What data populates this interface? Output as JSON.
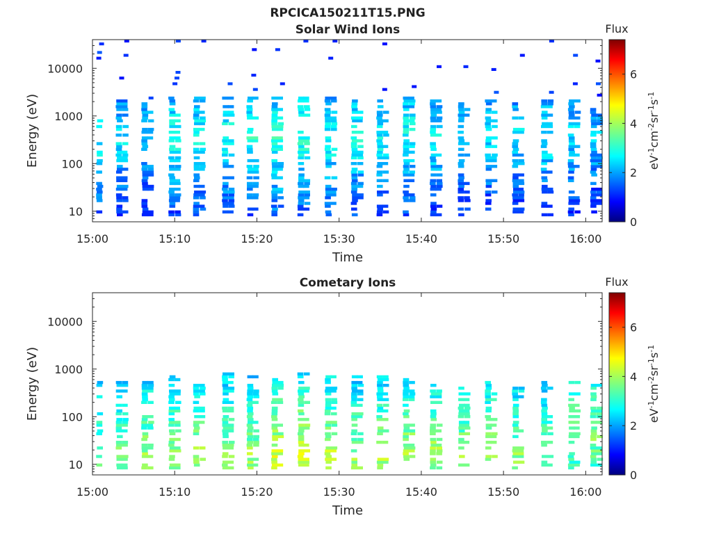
{
  "figure": {
    "title": "RPCICA150211T15.PNG"
  },
  "chart_data": [
    {
      "type": "heatmap",
      "title": "Solar Wind Ions",
      "xlabel": "Time",
      "ylabel": "Energy (eV)",
      "x_ticks": [
        "15:00",
        "15:10",
        "15:20",
        "15:30",
        "15:40",
        "15:50",
        "16:00"
      ],
      "x_range_minutes_after_15_00": [
        0,
        62
      ],
      "y_scale": "log",
      "y_ticks": [
        "10",
        "100",
        "1000",
        "10000"
      ],
      "y_range": [
        6,
        40000
      ],
      "colorbar": {
        "title": "Flux",
        "label": "eV-1cm-2sr-1s-1",
        "ticks": [
          "0",
          "2",
          "4",
          "6"
        ],
        "range": [
          0,
          7.4
        ],
        "colormap": "jet"
      },
      "sweeps": [
        {
          "t": 0.5,
          "lo": 8,
          "hi": 2500,
          "peak": 2.9,
          "peak_e": 400
        },
        {
          "t": 3.6,
          "lo": 8,
          "hi": 1800,
          "peak": 2.6,
          "peak_e": 350
        },
        {
          "t": 6.7,
          "lo": 8,
          "hi": 1600,
          "peak": 2.5,
          "peak_e": 400
        },
        {
          "t": 10.0,
          "lo": 8,
          "hi": 2200,
          "peak": 2.9,
          "peak_e": 350
        },
        {
          "t": 13.0,
          "lo": 8,
          "hi": 2000,
          "peak": 2.8,
          "peak_e": 400
        },
        {
          "t": 16.5,
          "lo": 8,
          "hi": 2000,
          "peak": 2.9,
          "peak_e": 350
        },
        {
          "t": 19.5,
          "lo": 8,
          "hi": 2200,
          "peak": 3.0,
          "peak_e": 400
        },
        {
          "t": 22.5,
          "lo": 8,
          "hi": 2200,
          "peak": 3.1,
          "peak_e": 350
        },
        {
          "t": 25.7,
          "lo": 8,
          "hi": 2100,
          "peak": 3.1,
          "peak_e": 400
        },
        {
          "t": 29.0,
          "lo": 8,
          "hi": 2000,
          "peak": 2.9,
          "peak_e": 350
        },
        {
          "t": 32.2,
          "lo": 8,
          "hi": 2000,
          "peak": 2.9,
          "peak_e": 400
        },
        {
          "t": 35.3,
          "lo": 8,
          "hi": 1900,
          "peak": 2.8,
          "peak_e": 350
        },
        {
          "t": 38.5,
          "lo": 8,
          "hi": 2000,
          "peak": 2.9,
          "peak_e": 400
        },
        {
          "t": 41.8,
          "lo": 8,
          "hi": 1800,
          "peak": 2.8,
          "peak_e": 350
        },
        {
          "t": 45.2,
          "lo": 8,
          "hi": 1700,
          "peak": 2.6,
          "peak_e": 400
        },
        {
          "t": 48.5,
          "lo": 8,
          "hi": 1800,
          "peak": 2.6,
          "peak_e": 350
        },
        {
          "t": 51.8,
          "lo": 8,
          "hi": 1800,
          "peak": 2.6,
          "peak_e": 400
        },
        {
          "t": 55.3,
          "lo": 8,
          "hi": 1900,
          "peak": 2.7,
          "peak_e": 350
        },
        {
          "t": 58.6,
          "lo": 8,
          "hi": 1800,
          "peak": 2.6,
          "peak_e": 400
        },
        {
          "t": 61.3,
          "lo": 8,
          "hi": 1500,
          "peak": 2.4,
          "peak_e": 300
        }
      ]
    },
    {
      "type": "heatmap",
      "title": "Cometary Ions",
      "xlabel": "Time",
      "ylabel": "Energy (eV)",
      "x_ticks": [
        "15:00",
        "15:10",
        "15:20",
        "15:30",
        "15:40",
        "15:50",
        "16:00"
      ],
      "x_range_minutes_after_15_00": [
        0,
        62
      ],
      "y_scale": "log",
      "y_ticks": [
        "10",
        "100",
        "1000",
        "10000"
      ],
      "y_range": [
        6,
        40000
      ],
      "colorbar": {
        "title": "Flux",
        "label": "eV-1cm-2sr-1s-1",
        "ticks": [
          "0",
          "2",
          "4",
          "6"
        ],
        "range": [
          0,
          7.4
        ],
        "colormap": "jet"
      },
      "sweeps": [
        {
          "t": 0.5,
          "lo": 8,
          "hi": 600,
          "peak": 3.6,
          "peak_e": 15
        },
        {
          "t": 3.6,
          "lo": 8,
          "hi": 500,
          "peak": 3.8,
          "peak_e": 15
        },
        {
          "t": 6.7,
          "lo": 8,
          "hi": 500,
          "peak": 3.9,
          "peak_e": 15
        },
        {
          "t": 10.0,
          "lo": 8,
          "hi": 700,
          "peak": 3.9,
          "peak_e": 15
        },
        {
          "t": 13.0,
          "lo": 8,
          "hi": 600,
          "peak": 3.9,
          "peak_e": 15
        },
        {
          "t": 16.5,
          "lo": 8,
          "hi": 700,
          "peak": 3.9,
          "peak_e": 15
        },
        {
          "t": 19.5,
          "lo": 8,
          "hi": 600,
          "peak": 3.9,
          "peak_e": 15
        },
        {
          "t": 22.5,
          "lo": 8,
          "hi": 600,
          "peak": 4.3,
          "peak_e": 15
        },
        {
          "t": 25.7,
          "lo": 8,
          "hi": 700,
          "peak": 4.3,
          "peak_e": 15
        },
        {
          "t": 29.0,
          "lo": 8,
          "hi": 600,
          "peak": 4.1,
          "peak_e": 15
        },
        {
          "t": 32.2,
          "lo": 8,
          "hi": 600,
          "peak": 3.9,
          "peak_e": 15
        },
        {
          "t": 35.3,
          "lo": 8,
          "hi": 600,
          "peak": 4.0,
          "peak_e": 15
        },
        {
          "t": 38.5,
          "lo": 8,
          "hi": 600,
          "peak": 4.0,
          "peak_e": 15
        },
        {
          "t": 41.8,
          "lo": 8,
          "hi": 600,
          "peak": 4.1,
          "peak_e": 15
        },
        {
          "t": 45.2,
          "lo": 8,
          "hi": 500,
          "peak": 3.9,
          "peak_e": 15
        },
        {
          "t": 48.5,
          "lo": 8,
          "hi": 500,
          "peak": 4.0,
          "peak_e": 15
        },
        {
          "t": 51.8,
          "lo": 8,
          "hi": 450,
          "peak": 3.8,
          "peak_e": 15
        },
        {
          "t": 55.3,
          "lo": 8,
          "hi": 500,
          "peak": 3.7,
          "peak_e": 15
        },
        {
          "t": 58.6,
          "lo": 8,
          "hi": 500,
          "peak": 3.9,
          "peak_e": 50
        },
        {
          "t": 61.3,
          "lo": 8,
          "hi": 450,
          "peak": 3.8,
          "peak_e": 50
        }
      ]
    }
  ]
}
